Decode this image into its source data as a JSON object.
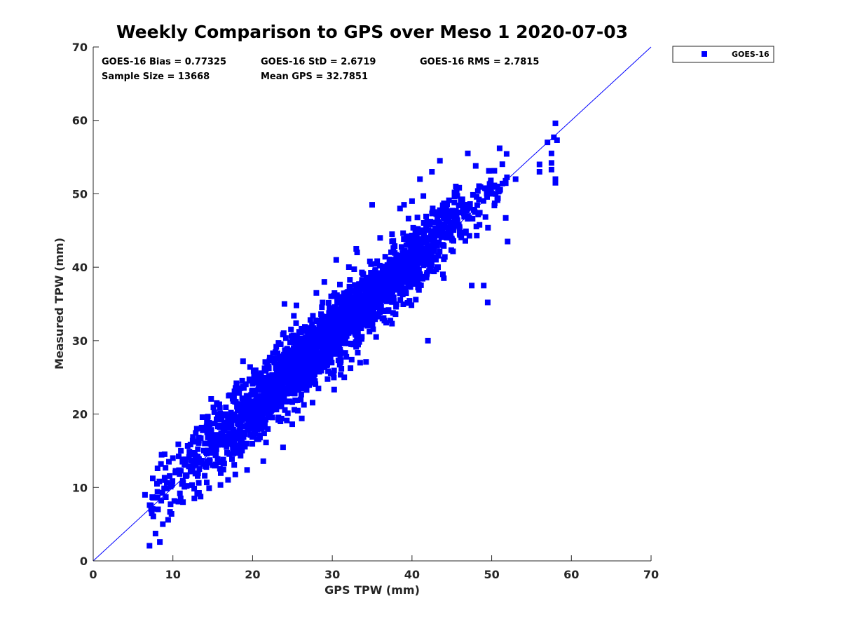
{
  "chart_data": {
    "type": "scatter",
    "title": "Weekly Comparison to GPS over Meso 1 2020-07-03",
    "xlabel": "GPS TPW (mm)",
    "ylabel": "Measured TPW (mm)",
    "xlim": [
      0,
      70
    ],
    "ylim": [
      0,
      70
    ],
    "x_ticks": [
      "0",
      "10",
      "20",
      "30",
      "40",
      "50",
      "60",
      "70"
    ],
    "y_ticks": [
      "0",
      "10",
      "20",
      "30",
      "40",
      "50",
      "60",
      "70"
    ],
    "grid": false,
    "legend_position": "outside-top-right",
    "reference_line": {
      "name": "1:1 line",
      "from": [
        0,
        0
      ],
      "to": [
        70,
        70
      ]
    },
    "annotations": {
      "bias": "GOES-16 Bias = 0.77325",
      "std": "GOES-16 StD = 2.6719",
      "rms": "GOES-16 RMS = 2.7815",
      "sample_size": "Sample Size = 13668",
      "mean_gps": "Mean GPS = 32.7851"
    },
    "series": [
      {
        "name": "GOES-16",
        "color": "#0000ff",
        "marker": "square",
        "bulk": {
          "x_range": [
            7,
            52
          ],
          "bias": 0.77,
          "std": 2.67
        },
        "points": [
          [
            6.5,
            9.0
          ],
          [
            7.5,
            8.6
          ],
          [
            8.0,
            10.5
          ],
          [
            8.5,
            13.2
          ],
          [
            9.0,
            11.0
          ],
          [
            9.5,
            13.5
          ],
          [
            10.0,
            14.0
          ],
          [
            11.0,
            15.0
          ],
          [
            12.5,
            14.5
          ],
          [
            13.0,
            18.0
          ],
          [
            14.0,
            16.0
          ],
          [
            15.5,
            21.5
          ],
          [
            17.0,
            22.5
          ],
          [
            18.0,
            24.0
          ],
          [
            18.8,
            27.2
          ],
          [
            20.0,
            17.0
          ],
          [
            22.0,
            23.0
          ],
          [
            23.5,
            19.0
          ],
          [
            24.0,
            35.0
          ],
          [
            25.5,
            34.8
          ],
          [
            26.0,
            24.0
          ],
          [
            27.0,
            25.5
          ],
          [
            28.0,
            36.5
          ],
          [
            29.0,
            38.0
          ],
          [
            30.5,
            41.0
          ],
          [
            31.5,
            25.0
          ],
          [
            33.0,
            42.5
          ],
          [
            33.5,
            27.0
          ],
          [
            35.0,
            48.5
          ],
          [
            35.5,
            30.5
          ],
          [
            36.0,
            44.0
          ],
          [
            37.5,
            44.5
          ],
          [
            38.5,
            48.0
          ],
          [
            39.0,
            48.5
          ],
          [
            40.0,
            49.0
          ],
          [
            41.0,
            52.0
          ],
          [
            42.0,
            30.0
          ],
          [
            42.5,
            53.0
          ],
          [
            43.5,
            54.5
          ],
          [
            44.0,
            38.5
          ],
          [
            45.5,
            51.0
          ],
          [
            47.5,
            37.5
          ],
          [
            47.0,
            55.5
          ],
          [
            48.0,
            53.8
          ],
          [
            49.0,
            37.5
          ],
          [
            49.5,
            35.2
          ],
          [
            50.0,
            50.0
          ],
          [
            51.0,
            56.2
          ],
          [
            52.0,
            43.5
          ],
          [
            53.0,
            52.0
          ],
          [
            56.0,
            54.0
          ],
          [
            56.0,
            53.0
          ],
          [
            57.0,
            57.0
          ],
          [
            57.5,
            55.5
          ],
          [
            57.5,
            54.2
          ],
          [
            57.5,
            53.3
          ],
          [
            57.8,
            57.7
          ],
          [
            58.0,
            52.0
          ],
          [
            58.0,
            51.5
          ],
          [
            58.0,
            59.6
          ],
          [
            58.2,
            57.3
          ]
        ]
      }
    ]
  }
}
